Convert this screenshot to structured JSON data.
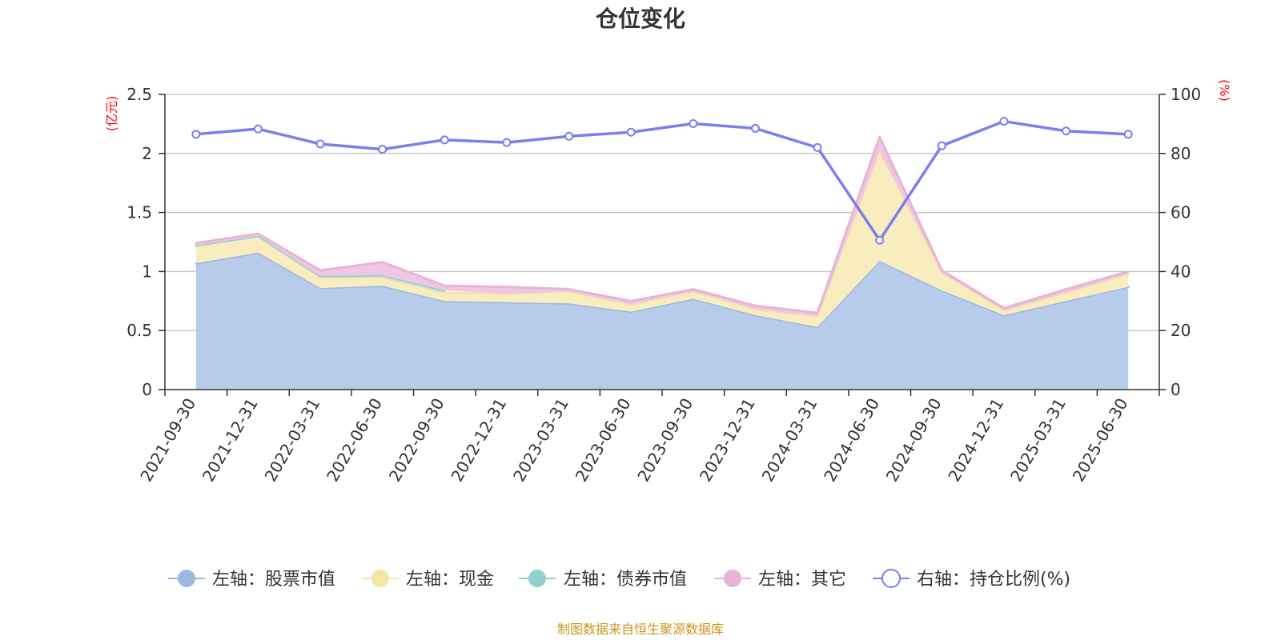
{
  "chart_data": {
    "type": "area",
    "title": "仓位变化",
    "left_axis_unit": "(亿元)",
    "right_axis_unit": "(%)",
    "left_ylim": [
      0,
      2.5
    ],
    "left_yticks": [
      "0",
      "0.5",
      "1",
      "1.5",
      "2",
      "2.5"
    ],
    "right_ylim": [
      0,
      100
    ],
    "right_yticks": [
      "0",
      "20",
      "40",
      "60",
      "80",
      "100"
    ],
    "grid": true,
    "legend_position": "bottom",
    "categories": [
      "2021-09-30",
      "2021-12-31",
      "2022-03-31",
      "2022-06-30",
      "2022-09-30",
      "2022-12-31",
      "2023-03-31",
      "2023-06-30",
      "2023-09-30",
      "2023-12-31",
      "2024-03-31",
      "2024-06-30",
      "2024-09-30",
      "2024-12-31",
      "2025-03-31",
      "2025-06-30"
    ],
    "series": [
      {
        "name": "左轴：股票市值",
        "axis": "left",
        "type": "area",
        "color": "#9bb8e1",
        "fill": "#b7cceb",
        "values": [
          1.07,
          1.16,
          0.86,
          0.88,
          0.75,
          0.74,
          0.73,
          0.66,
          0.77,
          0.63,
          0.53,
          1.09,
          0.84,
          0.63,
          0.75,
          0.87
        ]
      },
      {
        "name": "左轴：现金",
        "axis": "left",
        "type": "area",
        "color": "#f6e6a6",
        "fill": "#f9edc0",
        "values": [
          0.15,
          0.14,
          0.09,
          0.07,
          0.07,
          0.07,
          0.1,
          0.06,
          0.06,
          0.05,
          0.09,
          0.93,
          0.15,
          0.04,
          0.07,
          0.11
        ]
      },
      {
        "name": "左轴：债券市值",
        "axis": "left",
        "type": "area",
        "color": "#8fd1d0",
        "fill": "#b4e0df",
        "values": [
          0,
          0,
          0.01,
          0.02,
          0.02,
          null,
          null,
          null,
          null,
          null,
          null,
          null,
          null,
          null,
          null,
          null
        ]
      },
      {
        "name": "左轴：其它",
        "axis": "left",
        "type": "area",
        "color": "#e8b3d8",
        "fill": "#efc6e3",
        "values": [
          0.02,
          0.02,
          0.05,
          0.11,
          0.04,
          0.06,
          0.02,
          0.03,
          0.02,
          0.03,
          0.03,
          0.12,
          0.02,
          0.02,
          0.03,
          0.02
        ]
      },
      {
        "name": "右轴：持仓比例(%)",
        "axis": "right",
        "type": "line",
        "color": "#7b7ef0",
        "values": [
          86.5,
          88.3,
          83.2,
          81.4,
          84.6,
          83.7,
          85.8,
          87.2,
          90.1,
          88.5,
          82.0,
          50.6,
          82.6,
          90.9,
          87.6,
          86.5
        ]
      }
    ]
  },
  "footer": {
    "source": "制图数据来自恒生聚源数据库"
  }
}
